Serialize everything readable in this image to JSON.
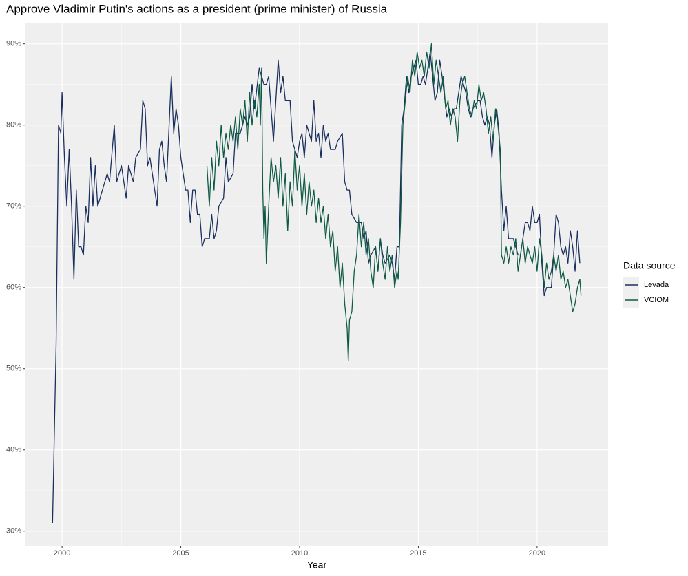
{
  "chart_data": {
    "type": "line",
    "title": "Approve Vladimir Putin's actions as a president (prime minister) of Russia",
    "x_label": "Year",
    "legend_title": "Data source",
    "legend_position": "right",
    "grid": true,
    "xlim": [
      1998.46,
      2022.99
    ],
    "ylim": [
      28.2,
      92.6
    ],
    "xticks": [
      2000,
      2005,
      2010,
      2015,
      2020
    ],
    "yticks": [
      {
        "value": 30,
        "label": "30%"
      },
      {
        "value": 40,
        "label": "40%"
      },
      {
        "value": 50,
        "label": "50%"
      },
      {
        "value": 60,
        "label": "60%"
      },
      {
        "value": 70,
        "label": "70%"
      },
      {
        "value": 80,
        "label": "80%"
      },
      {
        "value": 90,
        "label": "90%"
      }
    ],
    "series": [
      {
        "name": "Levada",
        "color": "#1b2f5e",
        "x": [
          1999.6,
          1999.75,
          1999.85,
          1999.95,
          2000.0,
          2000.1,
          2000.2,
          2000.3,
          2000.4,
          2000.5,
          2000.6,
          2000.7,
          2000.8,
          2000.9,
          2001.0,
          2001.1,
          2001.2,
          2001.3,
          2001.4,
          2001.5,
          2001.7,
          2001.9,
          2002.0,
          2002.2,
          2002.3,
          2002.5,
          2002.7,
          2002.8,
          2003.0,
          2003.1,
          2003.3,
          2003.4,
          2003.5,
          2003.6,
          2003.7,
          2003.9,
          2004.0,
          2004.1,
          2004.2,
          2004.3,
          2004.4,
          2004.6,
          2004.7,
          2004.8,
          2004.9,
          2005.0,
          2005.2,
          2005.3,
          2005.4,
          2005.5,
          2005.6,
          2005.7,
          2005.8,
          2005.9,
          2006.0,
          2006.2,
          2006.3,
          2006.4,
          2006.5,
          2006.6,
          2006.8,
          2006.9,
          2007.0,
          2007.2,
          2007.3,
          2007.5,
          2007.7,
          2007.8,
          2007.9,
          2008.0,
          2008.1,
          2008.3,
          2008.4,
          2008.5,
          2008.6,
          2008.7,
          2008.9,
          2009.0,
          2009.1,
          2009.2,
          2009.3,
          2009.4,
          2009.6,
          2009.7,
          2009.9,
          2010.0,
          2010.1,
          2010.2,
          2010.3,
          2010.5,
          2010.6,
          2010.7,
          2010.8,
          2010.9,
          2011.0,
          2011.1,
          2011.2,
          2011.3,
          2011.5,
          2011.6,
          2011.8,
          2011.9,
          2012.0,
          2012.1,
          2012.2,
          2012.4,
          2012.6,
          2012.7,
          2012.8,
          2012.9,
          2013.0,
          2013.2,
          2013.3,
          2013.4,
          2013.5,
          2013.6,
          2013.8,
          2013.9,
          2014.0,
          2014.1,
          2014.2,
          2014.3,
          2014.4,
          2014.5,
          2014.6,
          2014.7,
          2014.9,
          2015.0,
          2015.1,
          2015.2,
          2015.3,
          2015.4,
          2015.5,
          2015.6,
          2015.7,
          2015.8,
          2015.9,
          2016.0,
          2016.2,
          2016.3,
          2016.4,
          2016.5,
          2016.6,
          2016.7,
          2016.8,
          2016.9,
          2017.0,
          2017.1,
          2017.2,
          2017.3,
          2017.5,
          2017.6,
          2017.7,
          2017.8,
          2017.9,
          2018.0,
          2018.1,
          2018.2,
          2018.3,
          2018.4,
          2018.5,
          2018.6,
          2018.7,
          2018.8,
          2018.9,
          2019.0,
          2019.2,
          2019.3,
          2019.4,
          2019.5,
          2019.6,
          2019.7,
          2019.8,
          2019.9,
          2020.0,
          2020.1,
          2020.2,
          2020.3,
          2020.4,
          2020.5,
          2020.6,
          2020.7,
          2020.8,
          2020.9,
          2021.0,
          2021.1,
          2021.2,
          2021.3,
          2021.4,
          2021.5,
          2021.6,
          2021.7,
          2021.8
        ],
        "values": [
          31,
          53,
          80,
          79,
          84,
          76,
          70,
          77,
          70,
          61,
          72,
          65,
          65,
          64,
          70,
          68,
          76,
          70,
          75,
          70,
          72,
          74,
          73,
          80,
          73,
          75,
          71,
          75,
          73,
          76,
          77,
          83,
          82,
          75,
          76,
          72,
          70,
          77,
          78,
          75,
          73,
          86,
          79,
          82,
          80,
          76,
          72,
          72,
          68,
          72,
          72,
          69,
          69,
          65,
          66,
          66,
          69,
          66,
          67,
          70,
          71,
          76,
          73,
          74,
          79,
          79,
          81,
          80,
          81,
          85,
          82,
          87,
          86,
          85,
          85,
          86,
          78,
          83,
          88,
          84,
          86,
          83,
          83,
          78,
          76,
          78,
          79,
          76,
          80,
          78,
          83,
          78,
          79,
          76,
          80,
          78,
          79,
          77,
          77,
          78,
          79,
          73,
          72,
          72,
          69,
          68,
          68,
          66,
          67,
          63,
          64,
          65,
          62,
          66,
          64,
          63,
          64,
          63,
          61,
          65,
          65,
          80,
          82,
          86,
          84,
          86,
          88,
          85,
          85,
          86,
          85,
          87,
          89,
          86,
          83,
          84,
          88,
          86,
          81,
          82,
          81,
          82,
          82,
          84,
          86,
          85,
          84,
          82,
          81,
          82,
          83,
          83,
          81,
          80,
          81,
          80,
          76,
          80,
          82,
          79,
          72,
          67,
          70,
          66,
          66,
          66,
          64,
          64,
          66,
          68,
          68,
          67,
          70,
          68,
          68,
          69,
          63,
          59,
          60,
          60,
          60,
          64,
          69,
          68,
          65,
          64,
          65,
          63,
          67,
          65,
          62,
          67,
          63
        ]
      },
      {
        "name": "VCIOM",
        "color": "#0f5a45",
        "x": [
          2006.1,
          2006.2,
          2006.3,
          2006.4,
          2006.5,
          2006.6,
          2006.7,
          2006.8,
          2006.9,
          2007.0,
          2007.1,
          2007.2,
          2007.3,
          2007.4,
          2007.5,
          2007.6,
          2007.7,
          2007.8,
          2007.9,
          2008.0,
          2008.1,
          2008.2,
          2008.3,
          2008.35,
          2008.4,
          2008.45,
          2008.5,
          2008.55,
          2008.6,
          2008.7,
          2008.8,
          2008.9,
          2009.0,
          2009.1,
          2009.2,
          2009.3,
          2009.4,
          2009.5,
          2009.6,
          2009.7,
          2009.8,
          2009.9,
          2010.0,
          2010.1,
          2010.2,
          2010.3,
          2010.4,
          2010.5,
          2010.6,
          2010.7,
          2010.8,
          2010.9,
          2011.0,
          2011.1,
          2011.2,
          2011.3,
          2011.4,
          2011.5,
          2011.6,
          2011.7,
          2011.8,
          2011.9,
          2012.0,
          2012.05,
          2012.1,
          2012.2,
          2012.3,
          2012.4,
          2012.5,
          2012.6,
          2012.7,
          2012.8,
          2012.9,
          2013.0,
          2013.1,
          2013.2,
          2013.3,
          2013.4,
          2013.5,
          2013.6,
          2013.7,
          2013.8,
          2013.9,
          2014.0,
          2014.1,
          2014.15,
          2014.25,
          2014.35,
          2014.45,
          2014.55,
          2014.65,
          2014.75,
          2014.85,
          2014.95,
          2015.05,
          2015.15,
          2015.25,
          2015.35,
          2015.45,
          2015.55,
          2015.65,
          2015.75,
          2015.85,
          2015.95,
          2016.05,
          2016.15,
          2016.25,
          2016.35,
          2016.45,
          2016.55,
          2016.65,
          2016.75,
          2016.85,
          2016.95,
          2017.05,
          2017.15,
          2017.25,
          2017.35,
          2017.45,
          2017.55,
          2017.65,
          2017.75,
          2017.85,
          2017.95,
          2018.05,
          2018.15,
          2018.25,
          2018.35,
          2018.45,
          2018.5,
          2018.6,
          2018.7,
          2018.8,
          2018.9,
          2019.0,
          2019.1,
          2019.2,
          2019.3,
          2019.4,
          2019.5,
          2019.6,
          2019.7,
          2019.8,
          2019.9,
          2020.0,
          2020.1,
          2020.2,
          2020.3,
          2020.4,
          2020.5,
          2020.6,
          2020.7,
          2020.8,
          2020.9,
          2021.0,
          2021.1,
          2021.2,
          2021.3,
          2021.4,
          2021.5,
          2021.6,
          2021.7,
          2021.8,
          2021.85
        ],
        "values": [
          75,
          70,
          76,
          72,
          78,
          75,
          80,
          76,
          79,
          77,
          80,
          78,
          81,
          77,
          82,
          80,
          83,
          78,
          84,
          80,
          83,
          81,
          85,
          80,
          87,
          72,
          66,
          70,
          63,
          70,
          76,
          73,
          75,
          71,
          76,
          70,
          74,
          67,
          73,
          70,
          77,
          72,
          75,
          70,
          74,
          69,
          73,
          70,
          72,
          68,
          71,
          68,
          70,
          66,
          69,
          65,
          67,
          62,
          65,
          60,
          63,
          58,
          55,
          51,
          56,
          57,
          62,
          64,
          69,
          65,
          68,
          64,
          66,
          62,
          60,
          65,
          62,
          66,
          63,
          61,
          65,
          62,
          64,
          60,
          62,
          61,
          68,
          80,
          83,
          86,
          84,
          88,
          86,
          89,
          87,
          88,
          86,
          89,
          87,
          90,
          85,
          88,
          86,
          84,
          86,
          82,
          83,
          80,
          82,
          81,
          78,
          83,
          85,
          86,
          84,
          82,
          81,
          83,
          82,
          85,
          83,
          84,
          82,
          79,
          81,
          78,
          82,
          80,
          77,
          64,
          63,
          65,
          63,
          65,
          64,
          66,
          62,
          64,
          66,
          63,
          65,
          64,
          63,
          65,
          62,
          66,
          64,
          60,
          63,
          61,
          62,
          64,
          62,
          64,
          61,
          62,
          60,
          61,
          59,
          57,
          58,
          60,
          61,
          59
        ]
      }
    ]
  }
}
